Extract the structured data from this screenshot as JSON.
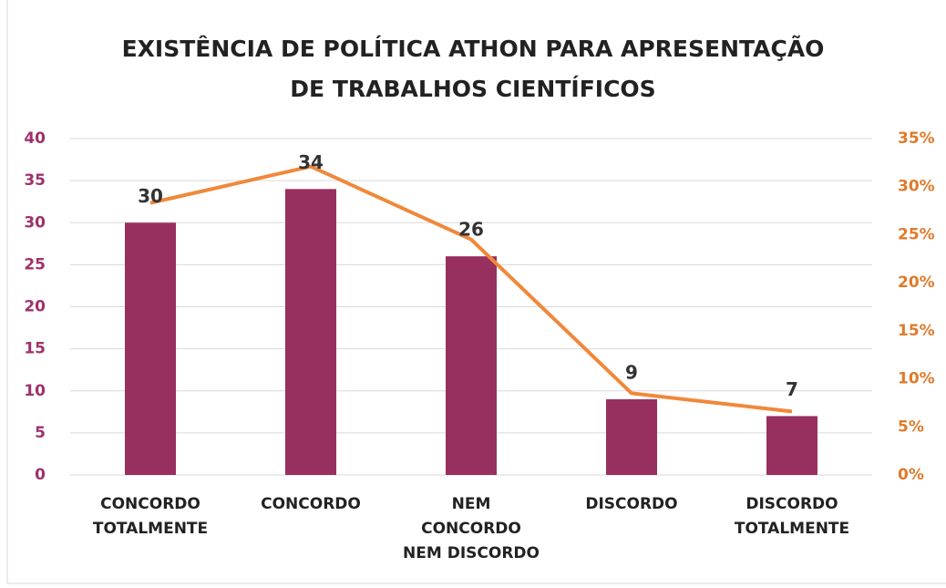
{
  "chart_data": {
    "type": "bar",
    "title": "EXISTÊNCIA DE POLÍTICA ATHON PARA APRESENTAÇÃO\nDE TRABALHOS CIENTÍFICOS",
    "categories": [
      "CONCORDO\nTOTALMENTE",
      "CONCORDO",
      "NEM\nCONCORDO\nNEM DISCORDO",
      "DISCORDO",
      "DISCORDO\nTOTALMENTE"
    ],
    "series": [
      {
        "type": "bar",
        "color": "#98305f",
        "values": [
          30,
          34,
          26,
          9,
          7
        ]
      },
      {
        "type": "line",
        "axis": "y2",
        "color": "#f0883a",
        "values": [
          28.3,
          32.1,
          24.5,
          8.5,
          6.6
        ]
      }
    ],
    "ylim": [
      0,
      40
    ],
    "yticks": [
      0,
      5,
      10,
      15,
      20,
      25,
      30,
      35,
      40
    ],
    "y2lim": [
      0,
      35
    ],
    "y2ticks": [
      {
        "value": 0,
        "label": "0%"
      },
      {
        "value": 5,
        "label": "5%"
      },
      {
        "value": 10,
        "label": "10%"
      },
      {
        "value": 15,
        "label": "15%"
      },
      {
        "value": 20,
        "label": "20%"
      },
      {
        "value": 25,
        "label": "25%"
      },
      {
        "value": 30,
        "label": "30%"
      },
      {
        "value": 35,
        "label": "35%"
      }
    ],
    "grid": true
  }
}
